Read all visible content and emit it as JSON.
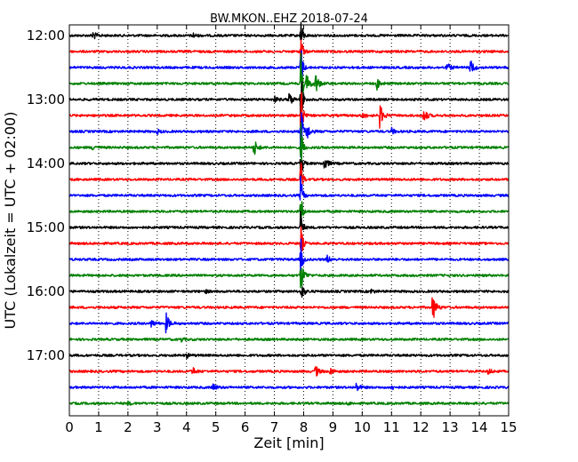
{
  "chart_data": {
    "type": "line",
    "title": "BW.MKON..EHZ 2018-07-24",
    "xlabel": "Zeit  [min]",
    "ylabel": "UTC (Lokalzeit = UTC + 02:00)",
    "xlim": [
      0,
      15
    ],
    "x_ticks": [
      "0",
      "1",
      "2",
      "3",
      "4",
      "5",
      "6",
      "7",
      "8",
      "9",
      "10",
      "11",
      "12",
      "13",
      "14",
      "15"
    ],
    "y_ticks": [
      "12:00",
      "13:00",
      "14:00",
      "15:00",
      "16:00",
      "17:00"
    ],
    "grid": "vertical dotted",
    "trace_interval_minutes": 15,
    "colors": [
      "#000000",
      "#ff0000",
      "#0000ff",
      "#008000"
    ],
    "series": [
      {
        "start": "12:00",
        "color": "#000000",
        "events": [
          {
            "x": 0.8,
            "amp": 0.6
          },
          {
            "x": 4.2,
            "amp": 0.4
          },
          {
            "x": 7.9,
            "amp": 3.0
          }
        ]
      },
      {
        "start": "12:15",
        "color": "#ff0000",
        "events": [
          {
            "x": 7.9,
            "amp": 3.0
          }
        ]
      },
      {
        "start": "12:30",
        "color": "#0000ff",
        "events": [
          {
            "x": 7.9,
            "amp": 4.0
          },
          {
            "x": 12.9,
            "amp": 0.6
          },
          {
            "x": 13.7,
            "amp": 1.1
          }
        ]
      },
      {
        "start": "12:45",
        "color": "#008000",
        "events": [
          {
            "x": 7.9,
            "amp": 5.0
          },
          {
            "x": 8.1,
            "amp": 1.2
          },
          {
            "x": 8.4,
            "amp": 1.4
          },
          {
            "x": 10.5,
            "amp": 0.8
          }
        ]
      },
      {
        "start": "13:00",
        "color": "#000000",
        "events": [
          {
            "x": 7.0,
            "amp": 0.4
          },
          {
            "x": 7.5,
            "amp": 1.0
          },
          {
            "x": 7.9,
            "amp": 5.0
          }
        ]
      },
      {
        "start": "13:15",
        "color": "#ff0000",
        "events": [
          {
            "x": 7.9,
            "amp": 5.0
          },
          {
            "x": 10.0,
            "amp": 0.5
          },
          {
            "x": 10.6,
            "amp": 1.6
          },
          {
            "x": 12.1,
            "amp": 1.0
          }
        ]
      },
      {
        "start": "13:30",
        "color": "#0000ff",
        "events": [
          {
            "x": 3.0,
            "amp": 0.3
          },
          {
            "x": 7.9,
            "amp": 5.0
          },
          {
            "x": 8.1,
            "amp": 1.2
          },
          {
            "x": 11.0,
            "amp": 0.4
          }
        ]
      },
      {
        "start": "13:45",
        "color": "#008000",
        "events": [
          {
            "x": 0.8,
            "amp": 0.4
          },
          {
            "x": 6.3,
            "amp": 1.2
          },
          {
            "x": 7.9,
            "amp": 4.0
          }
        ]
      },
      {
        "start": "14:00",
        "color": "#000000",
        "events": [
          {
            "x": 7.9,
            "amp": 3.0
          },
          {
            "x": 8.7,
            "amp": 1.0
          }
        ]
      },
      {
        "start": "14:15",
        "color": "#ff0000",
        "events": [
          {
            "x": 7.9,
            "amp": 3.0
          }
        ]
      },
      {
        "start": "14:30",
        "color": "#0000ff",
        "events": [
          {
            "x": 7.9,
            "amp": 3.0
          }
        ]
      },
      {
        "start": "14:45",
        "color": "#008000",
        "events": [
          {
            "x": 7.9,
            "amp": 3.0
          }
        ]
      },
      {
        "start": "15:00",
        "color": "#000000",
        "events": [
          {
            "x": 7.9,
            "amp": 3.0
          }
        ]
      },
      {
        "start": "15:15",
        "color": "#ff0000",
        "events": [
          {
            "x": 7.9,
            "amp": 3.0
          }
        ]
      },
      {
        "start": "15:30",
        "color": "#0000ff",
        "events": [
          {
            "x": 7.9,
            "amp": 3.0
          },
          {
            "x": 8.8,
            "amp": 0.5
          }
        ]
      },
      {
        "start": "15:45",
        "color": "#008000",
        "events": [
          {
            "x": 7.9,
            "amp": 2.0
          }
        ]
      },
      {
        "start": "16:00",
        "color": "#000000",
        "events": [
          {
            "x": 4.6,
            "amp": 0.3
          },
          {
            "x": 7.9,
            "amp": 1.2
          },
          {
            "x": 10.3,
            "amp": 0.3
          }
        ]
      },
      {
        "start": "16:15",
        "color": "#ff0000",
        "events": [
          {
            "x": 12.4,
            "amp": 2.0
          }
        ]
      },
      {
        "start": "16:30",
        "color": "#0000ff",
        "events": [
          {
            "x": 2.8,
            "amp": 0.5
          },
          {
            "x": 3.3,
            "amp": 1.3
          }
        ]
      },
      {
        "start": "16:45",
        "color": "#008000",
        "events": [
          {
            "x": 3.8,
            "amp": 0.3
          }
        ]
      },
      {
        "start": "17:00",
        "color": "#000000",
        "events": [
          {
            "x": 4.0,
            "amp": 0.3
          }
        ]
      },
      {
        "start": "17:15",
        "color": "#ff0000",
        "events": [
          {
            "x": 4.2,
            "amp": 0.6
          },
          {
            "x": 8.4,
            "amp": 0.8
          },
          {
            "x": 8.9,
            "amp": 0.5
          },
          {
            "x": 14.3,
            "amp": 0.4
          }
        ]
      },
      {
        "start": "17:30",
        "color": "#0000ff",
        "events": [
          {
            "x": 4.9,
            "amp": 0.5
          },
          {
            "x": 9.8,
            "amp": 0.6
          },
          {
            "x": 11.0,
            "amp": 0.3
          }
        ]
      },
      {
        "start": "17:45",
        "color": "#008000",
        "events": [
          {
            "x": 2.0,
            "amp": 0.2
          },
          {
            "x": 9.5,
            "amp": 0.2
          }
        ]
      }
    ]
  }
}
